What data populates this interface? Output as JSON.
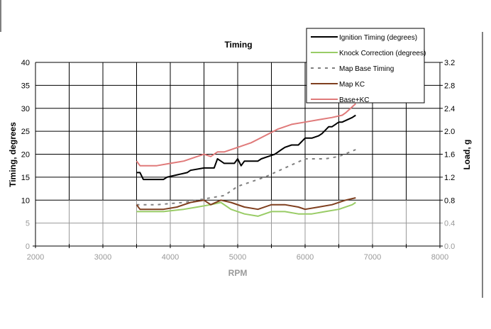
{
  "chart_data": {
    "type": "line",
    "title": "Timing",
    "xlabel": "RPM",
    "ylabel": "Timing, degrees",
    "y2label": "Load, g",
    "xlim": [
      2000,
      8000
    ],
    "ylim": [
      0,
      40
    ],
    "y2lim": [
      0.0,
      3.2
    ],
    "x_ticks": [
      "2000",
      "3000",
      "4000",
      "5000",
      "6000",
      "7000",
      "8000"
    ],
    "y_ticks": [
      "0",
      "5",
      "10",
      "15",
      "20",
      "25",
      "30",
      "35",
      "40"
    ],
    "y2_ticks": [
      "0.0",
      "0.4",
      "0.8",
      "1.2",
      "1.6",
      "2.0",
      "2.4",
      "2.8",
      "3.2"
    ],
    "grid": true,
    "legend_position": "top-right",
    "series": [
      {
        "name": "Ignition Timing (degrees)",
        "color": "#000000",
        "style": "solid",
        "x": [
          3500,
          3550,
          3600,
          3650,
          3900,
          3950,
          4100,
          4250,
          4300,
          4500,
          4550,
          4650,
          4700,
          4750,
          4800,
          4950,
          5000,
          5050,
          5100,
          5300,
          5350,
          5550,
          5600,
          5650,
          5700,
          5800,
          5900,
          6000,
          6100,
          6200,
          6250,
          6350,
          6400,
          6450,
          6500,
          6550,
          6700,
          6750
        ],
        "values": [
          16,
          16,
          14.5,
          14.5,
          14.5,
          15,
          15.5,
          16,
          16.5,
          17,
          17,
          17,
          19,
          18.5,
          18,
          18,
          19,
          17.5,
          18.5,
          18.5,
          19,
          20,
          20.5,
          21,
          21.5,
          22,
          22,
          23.5,
          23.5,
          24,
          24.5,
          26,
          26,
          26.5,
          27,
          27,
          28,
          28.5
        ]
      },
      {
        "name": "Knock Correction (degrees)",
        "color": "#99cc66",
        "style": "solid",
        "x": [
          3500,
          3550,
          3700,
          3900,
          4200,
          4400,
          4600,
          4750,
          4900,
          5100,
          5300,
          5500,
          5700,
          5900,
          6100,
          6300,
          6500,
          6700,
          6750
        ],
        "values": [
          7.5,
          7.5,
          7.5,
          7.5,
          8,
          8.5,
          9,
          9.5,
          8,
          7,
          6.5,
          7.5,
          7.5,
          7,
          7,
          7.5,
          8,
          9,
          9.5
        ]
      },
      {
        "name": "Map Base Timing",
        "color": "#808080",
        "style": "dashed",
        "x": [
          3500,
          3800,
          4200,
          4600,
          4800,
          5000,
          5200,
          5400,
          5700,
          6000,
          6300,
          6500,
          6750
        ],
        "values": [
          9,
          9,
          9.5,
          10.5,
          11,
          13,
          14,
          15,
          17,
          19,
          19,
          19.5,
          21
        ]
      },
      {
        "name": "Map KC",
        "color": "#7f3f1f",
        "style": "solid",
        "x": [
          3500,
          3550,
          3700,
          3900,
          4100,
          4300,
          4500,
          4600,
          4750,
          4900,
          5100,
          5300,
          5500,
          5700,
          5900,
          6000,
          6200,
          6400,
          6600,
          6750
        ],
        "values": [
          9,
          8,
          8,
          8,
          8.5,
          9.5,
          10,
          9,
          10,
          9.5,
          8.5,
          8,
          9,
          9,
          8.5,
          8,
          8.5,
          9,
          10,
          10.5
        ]
      },
      {
        "name": "Base+KC",
        "color": "#e07a7a",
        "style": "solid",
        "x": [
          3500,
          3550,
          3600,
          3800,
          4000,
          4200,
          4400,
          4500,
          4600,
          4700,
          4800,
          5000,
          5200,
          5400,
          5600,
          5800,
          6000,
          6200,
          6400,
          6550,
          6600,
          6750
        ],
        "values": [
          18.5,
          17.5,
          17.5,
          17.5,
          18,
          18.5,
          19.5,
          20,
          19.5,
          20.5,
          20.5,
          21.5,
          22.5,
          24,
          25.5,
          26.5,
          27,
          27.5,
          28,
          28.5,
          29,
          31
        ]
      }
    ]
  },
  "legend": {
    "items": [
      {
        "label": "Ignition Timing (degrees)"
      },
      {
        "label": "Knock Correction (degrees)"
      },
      {
        "label": "Map Base Timing"
      },
      {
        "label": "Map KC"
      },
      {
        "label": "Base+KC"
      }
    ]
  },
  "colors": {
    "grid": "#000000",
    "grid_light": "#999999",
    "ignition": "#000000",
    "knock": "#99cc66",
    "base": "#808080",
    "mapkc": "#7f3f1f",
    "basekc": "#e07a7a"
  }
}
